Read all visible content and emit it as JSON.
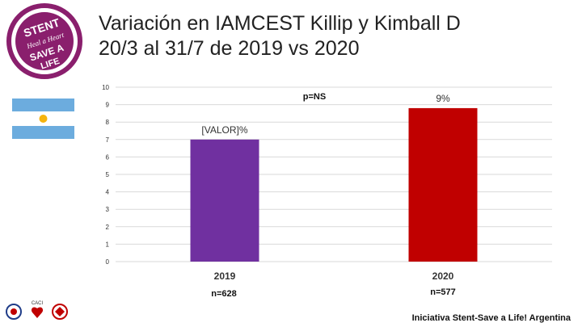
{
  "header": {
    "title_line1": "Variación en IAMCEST Killip y Kimball D",
    "title_line2": "20/3 al 31/7 de 2019 vs 2020"
  },
  "logo": {
    "text_stent": "STENT",
    "text_heal": "Heal a Heart",
    "text_save": "SAVE A",
    "text_life": "LIFE",
    "color": "#8a1f6d"
  },
  "flag": {
    "name": "argentina-flag",
    "stripe_color": "#6cacde",
    "sun_color": "#f6b40e"
  },
  "chart_data": {
    "type": "bar",
    "categories": [
      "2019",
      "2020"
    ],
    "values": [
      7,
      8.8
    ],
    "data_labels": [
      "[VALOR]%",
      "9%"
    ],
    "bar_colors": [
      "#7030a0",
      "#c00000"
    ],
    "annotation": "p=NS",
    "ylim": [
      0,
      10
    ],
    "yticks": [
      0,
      1,
      2,
      3,
      4,
      5,
      6,
      7,
      8,
      9,
      10
    ],
    "grid": true,
    "sample_sizes": [
      "n=628",
      "n=577"
    ]
  },
  "footer": {
    "text": "Iniciativa Stent-Save a Life! Argentina",
    "inst_label": "CACI"
  }
}
